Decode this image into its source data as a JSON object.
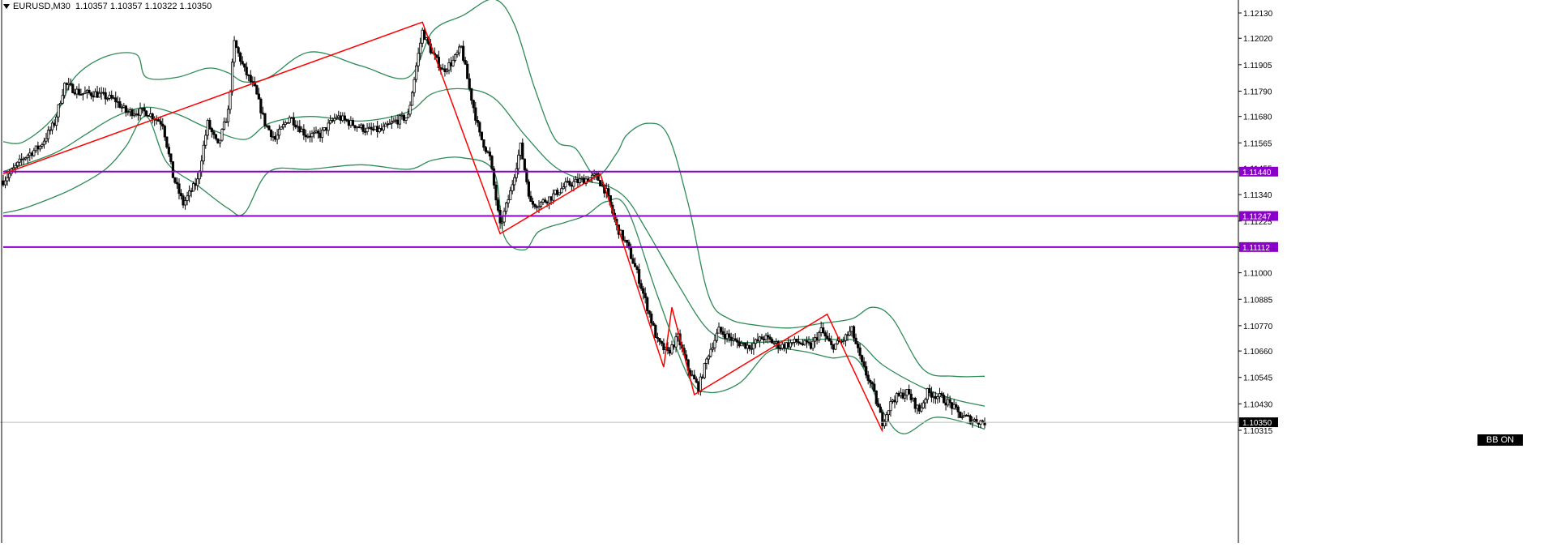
{
  "header": {
    "symbol": "EURUSD,M30",
    "ohlc": "1.10357 1.10357 1.10322 1.10350"
  },
  "badge": {
    "label": "BB ON"
  },
  "colors": {
    "background": "#ffffff",
    "axis": "#000000",
    "candle": "#000000",
    "bollinger": "#2e8b57",
    "zigzag": "#ff0000",
    "levels": "#8b00c8",
    "current_price_line": "#c0c0c0"
  },
  "chart_data": {
    "type": "candlestick",
    "symbol": "EURUSD",
    "timeframe": "M30",
    "y_ticks": [
      "1.12130",
      "1.12020",
      "1.11905",
      "1.11790",
      "1.11680",
      "1.11565",
      "1.11455",
      "1.11340",
      "1.11225",
      "1.11110",
      "1.11000",
      "1.10885",
      "1.10770",
      "1.10660",
      "1.10545",
      "1.10430",
      "1.10315"
    ],
    "ylim": [
      1.1028,
      1.12185
    ],
    "current_price": "1.10350",
    "horizontal_levels": [
      {
        "label": "1.11440",
        "value": 1.1144
      },
      {
        "label": "1.11247",
        "value": 1.11247
      },
      {
        "label": "1.11112",
        "value": 1.11112
      }
    ],
    "zigzag": [
      {
        "i": 0,
        "p": 1.1143
      },
      {
        "i": 205,
        "p": 1.1209
      },
      {
        "i": 243,
        "p": 1.1117
      },
      {
        "i": 292,
        "p": 1.1143
      },
      {
        "i": 323,
        "p": 1.1059
      },
      {
        "i": 327,
        "p": 1.1085
      },
      {
        "i": 338,
        "p": 1.1047
      },
      {
        "i": 403,
        "p": 1.1082
      },
      {
        "i": 430,
        "p": 1.1031
      }
    ],
    "bollinger": {
      "upper": [
        {
          "i": 0,
          "p": 1.1157
        },
        {
          "i": 10,
          "p": 1.1157
        },
        {
          "i": 25,
          "p": 1.1168
        },
        {
          "i": 35,
          "p": 1.1185
        },
        {
          "i": 50,
          "p": 1.1194
        },
        {
          "i": 65,
          "p": 1.1195
        },
        {
          "i": 70,
          "p": 1.1185
        },
        {
          "i": 85,
          "p": 1.1185
        },
        {
          "i": 100,
          "p": 1.1189
        },
        {
          "i": 110,
          "p": 1.1187
        },
        {
          "i": 118,
          "p": 1.1183
        },
        {
          "i": 130,
          "p": 1.1185
        },
        {
          "i": 150,
          "p": 1.1196
        },
        {
          "i": 175,
          "p": 1.119
        },
        {
          "i": 198,
          "p": 1.1185
        },
        {
          "i": 210,
          "p": 1.1205
        },
        {
          "i": 225,
          "p": 1.1212
        },
        {
          "i": 240,
          "p": 1.1219
        },
        {
          "i": 250,
          "p": 1.1208
        },
        {
          "i": 260,
          "p": 1.118
        },
        {
          "i": 270,
          "p": 1.1158
        },
        {
          "i": 280,
          "p": 1.1154
        },
        {
          "i": 290,
          "p": 1.1142
        },
        {
          "i": 300,
          "p": 1.1152
        },
        {
          "i": 305,
          "p": 1.116
        },
        {
          "i": 315,
          "p": 1.1165
        },
        {
          "i": 325,
          "p": 1.116
        },
        {
          "i": 335,
          "p": 1.113
        },
        {
          "i": 345,
          "p": 1.109
        },
        {
          "i": 355,
          "p": 1.108
        },
        {
          "i": 370,
          "p": 1.1077
        },
        {
          "i": 385,
          "p": 1.1076
        },
        {
          "i": 400,
          "p": 1.1078
        },
        {
          "i": 415,
          "p": 1.108
        },
        {
          "i": 425,
          "p": 1.1085
        },
        {
          "i": 435,
          "p": 1.108
        },
        {
          "i": 450,
          "p": 1.1058
        },
        {
          "i": 465,
          "p": 1.1055
        },
        {
          "i": 480,
          "p": 1.1055
        }
      ],
      "middle": [
        {
          "i": 0,
          "p": 1.1144
        },
        {
          "i": 25,
          "p": 1.1152
        },
        {
          "i": 40,
          "p": 1.116
        },
        {
          "i": 55,
          "p": 1.1168
        },
        {
          "i": 70,
          "p": 1.1172
        },
        {
          "i": 85,
          "p": 1.1169
        },
        {
          "i": 100,
          "p": 1.1163
        },
        {
          "i": 118,
          "p": 1.1158
        },
        {
          "i": 130,
          "p": 1.1165
        },
        {
          "i": 150,
          "p": 1.1168
        },
        {
          "i": 175,
          "p": 1.1166
        },
        {
          "i": 198,
          "p": 1.117
        },
        {
          "i": 210,
          "p": 1.1178
        },
        {
          "i": 225,
          "p": 1.118
        },
        {
          "i": 240,
          "p": 1.1176
        },
        {
          "i": 255,
          "p": 1.116
        },
        {
          "i": 270,
          "p": 1.1146
        },
        {
          "i": 285,
          "p": 1.114
        },
        {
          "i": 295,
          "p": 1.1138
        },
        {
          "i": 305,
          "p": 1.1132
        },
        {
          "i": 315,
          "p": 1.1118
        },
        {
          "i": 330,
          "p": 1.1095
        },
        {
          "i": 345,
          "p": 1.1075
        },
        {
          "i": 360,
          "p": 1.107
        },
        {
          "i": 375,
          "p": 1.107
        },
        {
          "i": 390,
          "p": 1.1071
        },
        {
          "i": 405,
          "p": 1.1071
        },
        {
          "i": 418,
          "p": 1.107
        },
        {
          "i": 430,
          "p": 1.106
        },
        {
          "i": 450,
          "p": 1.105
        },
        {
          "i": 465,
          "p": 1.1045
        },
        {
          "i": 480,
          "p": 1.1042
        }
      ],
      "lower": [
        {
          "i": 0,
          "p": 1.1126
        },
        {
          "i": 10,
          "p": 1.1128
        },
        {
          "i": 25,
          "p": 1.1133
        },
        {
          "i": 35,
          "p": 1.1137
        },
        {
          "i": 50,
          "p": 1.1145
        },
        {
          "i": 60,
          "p": 1.1155
        },
        {
          "i": 70,
          "p": 1.1168
        },
        {
          "i": 80,
          "p": 1.1148
        },
        {
          "i": 95,
          "p": 1.1138
        },
        {
          "i": 110,
          "p": 1.1128
        },
        {
          "i": 118,
          "p": 1.1126
        },
        {
          "i": 130,
          "p": 1.1144
        },
        {
          "i": 150,
          "p": 1.1145
        },
        {
          "i": 175,
          "p": 1.1147
        },
        {
          "i": 198,
          "p": 1.1145
        },
        {
          "i": 210,
          "p": 1.1149
        },
        {
          "i": 225,
          "p": 1.115
        },
        {
          "i": 240,
          "p": 1.1144
        },
        {
          "i": 245,
          "p": 1.1116
        },
        {
          "i": 255,
          "p": 1.111
        },
        {
          "i": 262,
          "p": 1.1118
        },
        {
          "i": 275,
          "p": 1.1122
        },
        {
          "i": 285,
          "p": 1.1125
        },
        {
          "i": 295,
          "p": 1.1131
        },
        {
          "i": 305,
          "p": 1.1128
        },
        {
          "i": 320,
          "p": 1.109
        },
        {
          "i": 335,
          "p": 1.1055
        },
        {
          "i": 345,
          "p": 1.1048
        },
        {
          "i": 360,
          "p": 1.1052
        },
        {
          "i": 375,
          "p": 1.1066
        },
        {
          "i": 390,
          "p": 1.1066
        },
        {
          "i": 405,
          "p": 1.1063
        },
        {
          "i": 418,
          "p": 1.1062
        },
        {
          "i": 430,
          "p": 1.104
        },
        {
          "i": 440,
          "p": 1.103
        },
        {
          "i": 455,
          "p": 1.1037
        },
        {
          "i": 470,
          "p": 1.1035
        },
        {
          "i": 480,
          "p": 1.1032
        }
      ]
    },
    "candle_count": 481,
    "close_path": [
      {
        "i": 0,
        "p": 1.114
      },
      {
        "i": 10,
        "p": 1.115
      },
      {
        "i": 18,
        "p": 1.1155
      },
      {
        "i": 25,
        "p": 1.1165
      },
      {
        "i": 30,
        "p": 1.1182
      },
      {
        "i": 38,
        "p": 1.1178
      },
      {
        "i": 45,
        "p": 1.1178
      },
      {
        "i": 55,
        "p": 1.1175
      },
      {
        "i": 60,
        "p": 1.117
      },
      {
        "i": 70,
        "p": 1.117
      },
      {
        "i": 78,
        "p": 1.1165
      },
      {
        "i": 83,
        "p": 1.1142
      },
      {
        "i": 88,
        "p": 1.113
      },
      {
        "i": 95,
        "p": 1.114
      },
      {
        "i": 100,
        "p": 1.1165
      },
      {
        "i": 105,
        "p": 1.1155
      },
      {
        "i": 110,
        "p": 1.117
      },
      {
        "i": 113,
        "p": 1.12
      },
      {
        "i": 118,
        "p": 1.1188
      },
      {
        "i": 123,
        "p": 1.118
      },
      {
        "i": 128,
        "p": 1.1165
      },
      {
        "i": 133,
        "p": 1.1158
      },
      {
        "i": 140,
        "p": 1.1168
      },
      {
        "i": 148,
        "p": 1.116
      },
      {
        "i": 155,
        "p": 1.116
      },
      {
        "i": 163,
        "p": 1.1168
      },
      {
        "i": 170,
        "p": 1.1165
      },
      {
        "i": 178,
        "p": 1.1162
      },
      {
        "i": 185,
        "p": 1.1162
      },
      {
        "i": 192,
        "p": 1.1166
      },
      {
        "i": 198,
        "p": 1.1168
      },
      {
        "i": 202,
        "p": 1.119
      },
      {
        "i": 205,
        "p": 1.1205
      },
      {
        "i": 210,
        "p": 1.1195
      },
      {
        "i": 215,
        "p": 1.1188
      },
      {
        "i": 220,
        "p": 1.1192
      },
      {
        "i": 224,
        "p": 1.1198
      },
      {
        "i": 228,
        "p": 1.118
      },
      {
        "i": 233,
        "p": 1.116
      },
      {
        "i": 238,
        "p": 1.115
      },
      {
        "i": 243,
        "p": 1.112
      },
      {
        "i": 248,
        "p": 1.1135
      },
      {
        "i": 253,
        "p": 1.1155
      },
      {
        "i": 258,
        "p": 1.113
      },
      {
        "i": 262,
        "p": 1.113
      },
      {
        "i": 268,
        "p": 1.1133
      },
      {
        "i": 275,
        "p": 1.1138
      },
      {
        "i": 282,
        "p": 1.114
      },
      {
        "i": 290,
        "p": 1.1142
      },
      {
        "i": 295,
        "p": 1.1135
      },
      {
        "i": 300,
        "p": 1.112
      },
      {
        "i": 305,
        "p": 1.1112
      },
      {
        "i": 310,
        "p": 1.11
      },
      {
        "i": 315,
        "p": 1.1085
      },
      {
        "i": 320,
        "p": 1.107
      },
      {
        "i": 325,
        "p": 1.1065
      },
      {
        "i": 330,
        "p": 1.1072
      },
      {
        "i": 335,
        "p": 1.1058
      },
      {
        "i": 340,
        "p": 1.105
      },
      {
        "i": 345,
        "p": 1.1065
      },
      {
        "i": 350,
        "p": 1.1075
      },
      {
        "i": 358,
        "p": 1.107
      },
      {
        "i": 365,
        "p": 1.1068
      },
      {
        "i": 372,
        "p": 1.1072
      },
      {
        "i": 380,
        "p": 1.1068
      },
      {
        "i": 388,
        "p": 1.107
      },
      {
        "i": 395,
        "p": 1.1068
      },
      {
        "i": 400,
        "p": 1.1075
      },
      {
        "i": 405,
        "p": 1.1068
      },
      {
        "i": 410,
        "p": 1.107
      },
      {
        "i": 415,
        "p": 1.1075
      },
      {
        "i": 420,
        "p": 1.106
      },
      {
        "i": 425,
        "p": 1.105
      },
      {
        "i": 430,
        "p": 1.1035
      },
      {
        "i": 435,
        "p": 1.1045
      },
      {
        "i": 442,
        "p": 1.1048
      },
      {
        "i": 448,
        "p": 1.104
      },
      {
        "i": 452,
        "p": 1.1048
      },
      {
        "i": 458,
        "p": 1.1046
      },
      {
        "i": 463,
        "p": 1.1043
      },
      {
        "i": 468,
        "p": 1.1038
      },
      {
        "i": 474,
        "p": 1.1036
      },
      {
        "i": 480,
        "p": 1.1035
      }
    ]
  }
}
